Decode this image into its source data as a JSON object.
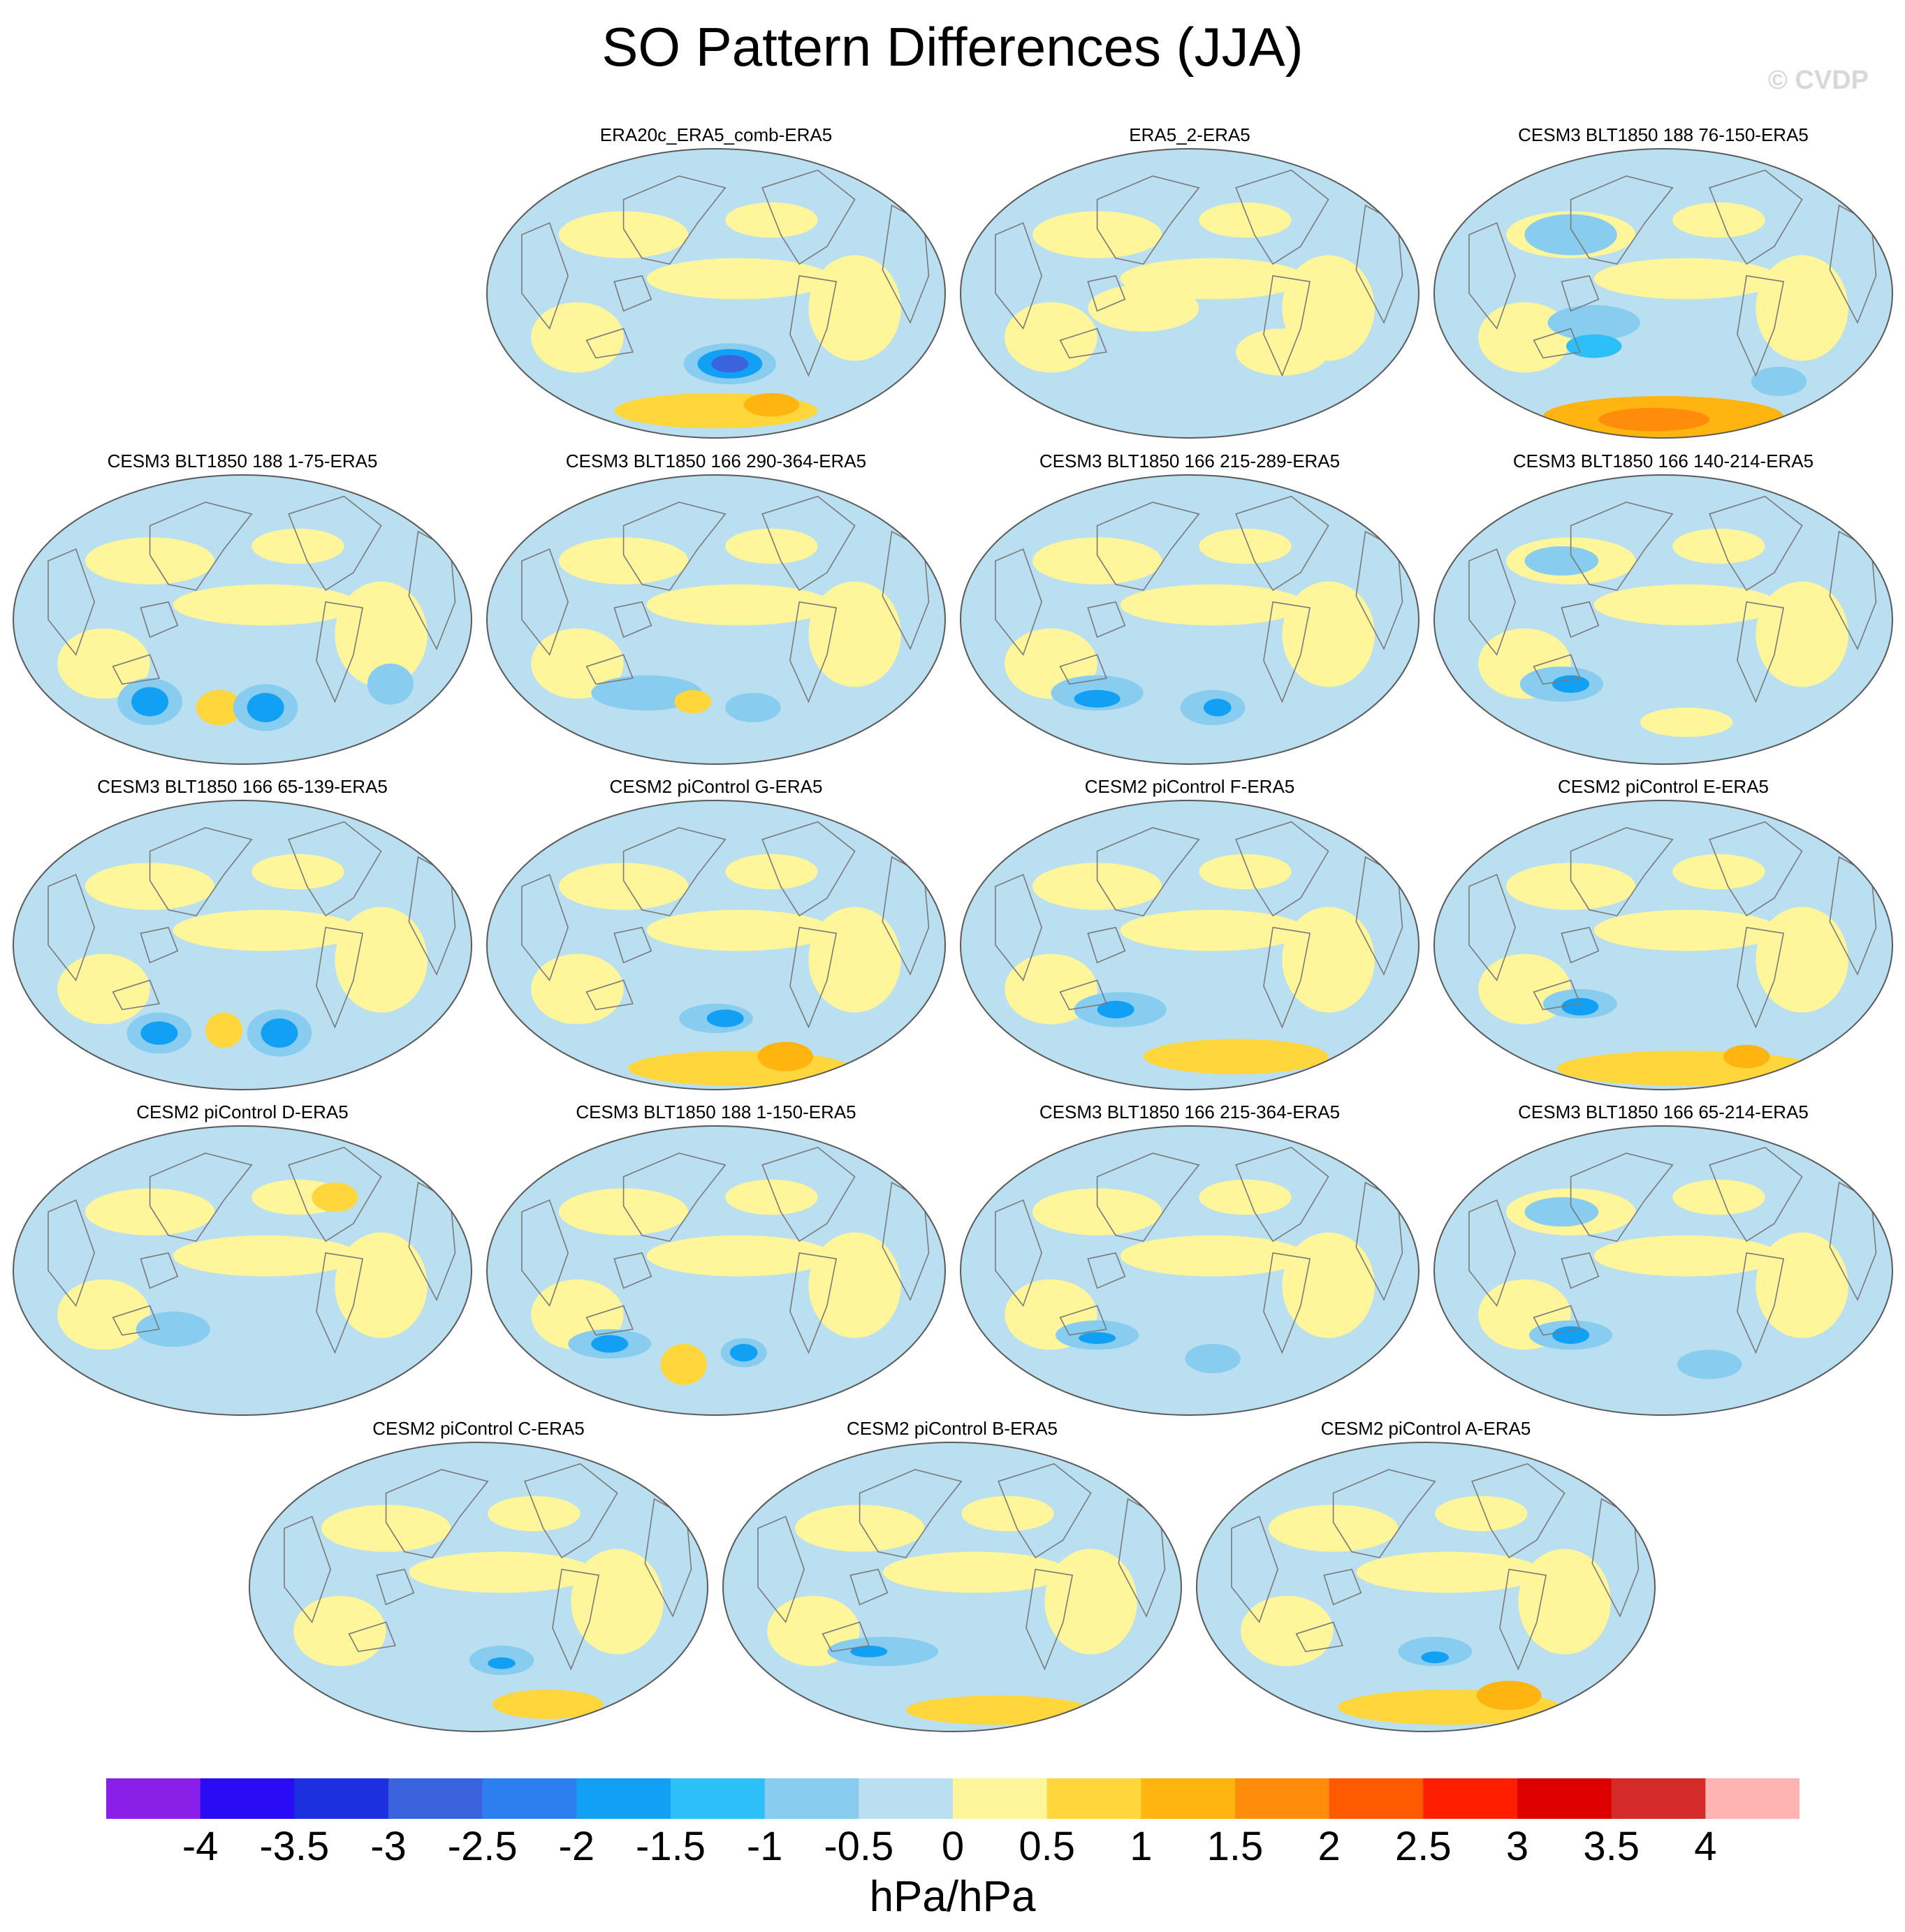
{
  "title": "SO Pattern Differences (JJA)",
  "watermark": "© CVDP",
  "colors": {
    "ocean_base": "#b9dff0",
    "coastline": "#7a7a7a",
    "border": "#5a5a5a"
  },
  "chart_data": {
    "type": "heatmap",
    "projection": "robinson",
    "variable": "sea level pressure pattern difference",
    "season": "JJA",
    "panels": [
      {
        "label": "ERA20c_ERA5_comb-ERA5"
      },
      {
        "label": "ERA5_2-ERA5"
      },
      {
        "label": "CESM3 BLT1850 188 76-150-ERA5"
      },
      {
        "label": "CESM3 BLT1850 188 1-75-ERA5"
      },
      {
        "label": "CESM3 BLT1850 166 290-364-ERA5"
      },
      {
        "label": "CESM3 BLT1850 166 215-289-ERA5"
      },
      {
        "label": "CESM3 BLT1850 166 140-214-ERA5"
      },
      {
        "label": "CESM3 BLT1850 166 65-139-ERA5"
      },
      {
        "label": "CESM2 piControl G-ERA5"
      },
      {
        "label": "CESM2 piControl F-ERA5"
      },
      {
        "label": "CESM2 piControl E-ERA5"
      },
      {
        "label": "CESM2 piControl D-ERA5"
      },
      {
        "label": "CESM3 BLT1850 188 1-150-ERA5"
      },
      {
        "label": "CESM3 BLT1850 166 215-364-ERA5"
      },
      {
        "label": "CESM3 BLT1850 166 65-214-ERA5"
      },
      {
        "label": "CESM2 piControl C-ERA5"
      },
      {
        "label": "CESM2 piControl B-ERA5"
      },
      {
        "label": "CESM2 piControl A-ERA5"
      }
    ],
    "colorbar": {
      "units": "hPa/hPa",
      "tick_labels": [
        "-4",
        "-3.5",
        "-3",
        "-2.5",
        "-2",
        "-1.5",
        "-1",
        "-0.5",
        "0",
        "0.5",
        "1",
        "1.5",
        "2",
        "2.5",
        "3",
        "3.5",
        "4"
      ],
      "colors": [
        "#8a1fe8",
        "#2a0bf5",
        "#1c30e0",
        "#3a63dd",
        "#2d7ff0",
        "#12a0f5",
        "#2cbff8",
        "#88cdf0",
        "#b9dff0",
        "#fff59a",
        "#ffd73c",
        "#ffb40f",
        "#ff8c0a",
        "#ff5a00",
        "#ff1e00",
        "#dc0000",
        "#d42a2a",
        "#ffb4b4"
      ]
    }
  }
}
